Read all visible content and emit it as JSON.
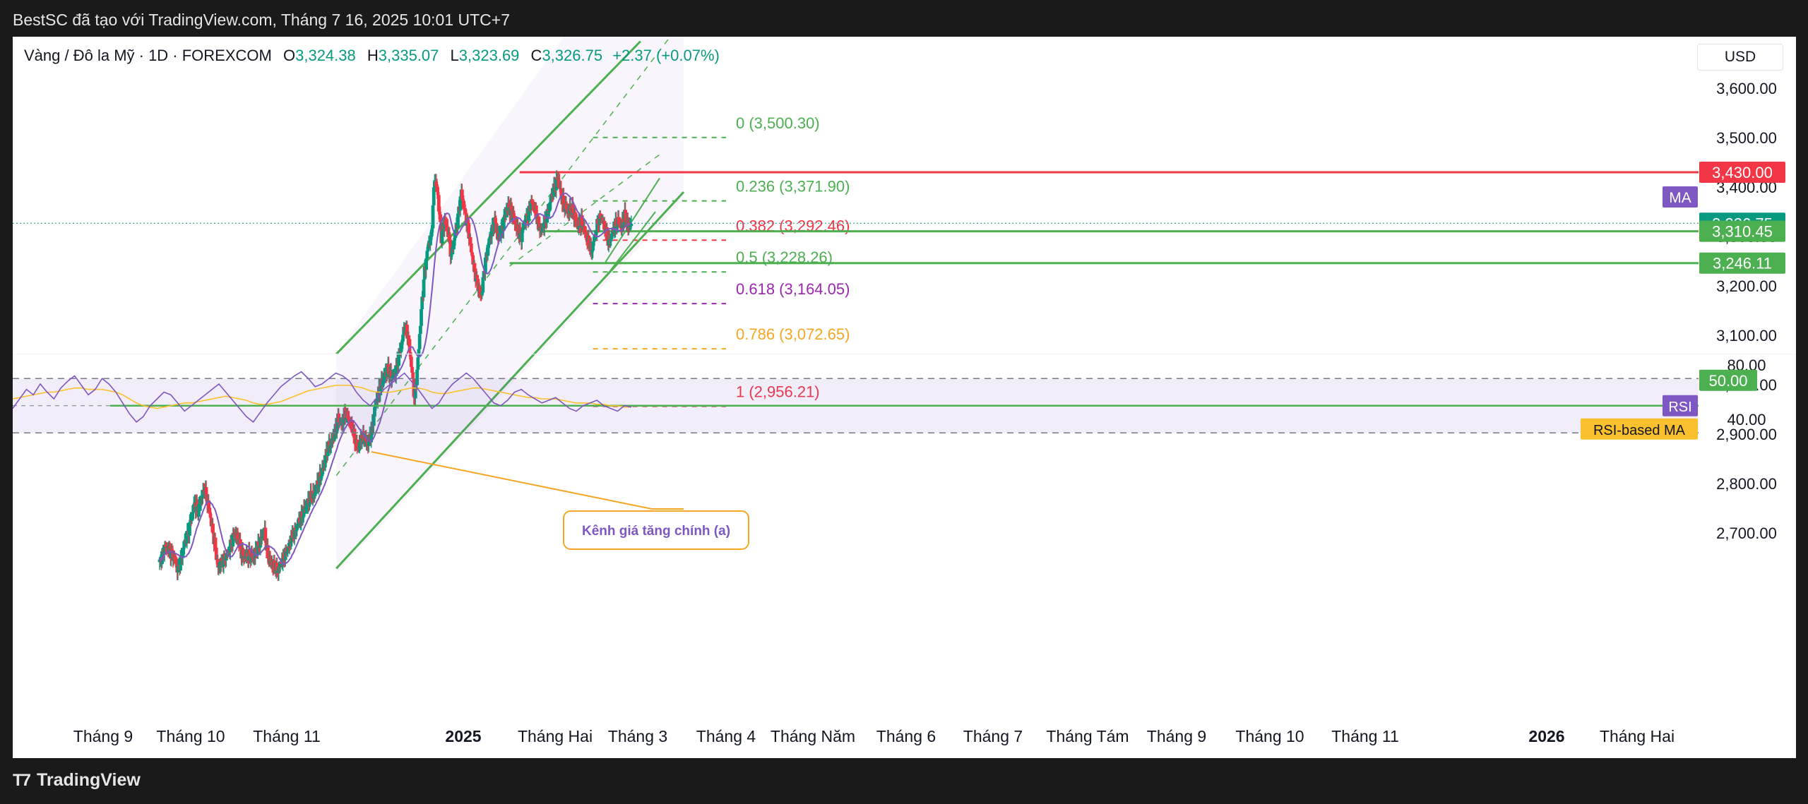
{
  "header": {
    "attribution": "BestSC đã tạo với TradingView.com, Tháng 7 16, 2025 10:01 UTC+7"
  },
  "footer": {
    "brand": "TradingView",
    "brand_icon": "tradingview-logo-icon"
  },
  "legend": {
    "symbol": "Vàng / Đô la Mỹ · 1D · FOREXCOM",
    "open_label": "O",
    "open": "3,324.38",
    "high_label": "H",
    "high": "3,335.07",
    "low_label": "L",
    "low": "3,323.69",
    "close_label": "C",
    "close": "3,326.75",
    "change": "+2.37 (+0.07%)"
  },
  "currency": "USD",
  "colors": {
    "up": "#089981",
    "down": "#f23645",
    "channel": "#4caf50",
    "ma": "#7e57c2",
    "rsi": "#7e57c2",
    "rsi_ma": "#fbc02d",
    "resistance": "#f23645"
  },
  "chart_data": [
    {
      "type": "candlestick",
      "symbol": "Vàng / Đô la Mỹ · 1D · FOREXCOM",
      "y_ticks": [
        "3,600.00",
        "3,500.00",
        "3,400.00",
        "3,300.00",
        "3,200.00",
        "3,100.00",
        "3,000.00",
        "2,900.00",
        "2,800.00",
        "2,700.00"
      ],
      "y_tick_values": [
        3600,
        3500,
        3400,
        3300,
        3200,
        3100,
        3000,
        2900,
        2800,
        2700
      ],
      "ylim": [
        2610,
        3705
      ],
      "x_ticks": [
        {
          "label": "Tháng 9",
          "bold": false
        },
        {
          "label": "Tháng 10",
          "bold": false
        },
        {
          "label": "Tháng 11",
          "bold": false
        },
        {
          "label": "2025",
          "bold": true
        },
        {
          "label": "Tháng Hai",
          "bold": false
        },
        {
          "label": "Tháng 3",
          "bold": false
        },
        {
          "label": "Tháng 4",
          "bold": false
        },
        {
          "label": "Tháng Năm",
          "bold": false
        },
        {
          "label": "Tháng 6",
          "bold": false
        },
        {
          "label": "Tháng 7",
          "bold": false
        },
        {
          "label": "Tháng Tám",
          "bold": false
        },
        {
          "label": "Tháng 9",
          "bold": false
        },
        {
          "label": "Tháng 10",
          "bold": false
        },
        {
          "label": "Tháng 11",
          "bold": false
        },
        {
          "label": "2026",
          "bold": true
        },
        {
          "label": "Tháng Hai",
          "bold": false
        }
      ],
      "close_path": [
        [
          0,
          2640
        ],
        [
          6,
          2672
        ],
        [
          10,
          2668
        ],
        [
          14,
          2660
        ],
        [
          18,
          2645
        ],
        [
          22,
          2625
        ],
        [
          26,
          2650
        ],
        [
          30,
          2680
        ],
        [
          34,
          2700
        ],
        [
          38,
          2730
        ],
        [
          42,
          2760
        ],
        [
          46,
          2745
        ],
        [
          50,
          2770
        ],
        [
          54,
          2790
        ],
        [
          58,
          2760
        ],
        [
          62,
          2720
        ],
        [
          66,
          2680
        ],
        [
          70,
          2630
        ],
        [
          74,
          2640
        ],
        [
          78,
          2650
        ],
        [
          82,
          2660
        ],
        [
          86,
          2680
        ],
        [
          90,
          2700
        ],
        [
          94,
          2690
        ],
        [
          98,
          2660
        ],
        [
          102,
          2650
        ],
        [
          106,
          2655
        ],
        [
          110,
          2650
        ],
        [
          114,
          2655
        ],
        [
          118,
          2670
        ],
        [
          122,
          2690
        ],
        [
          126,
          2700
        ],
        [
          130,
          2650
        ],
        [
          134,
          2640
        ],
        [
          138,
          2630
        ],
        [
          142,
          2625
        ],
        [
          146,
          2640
        ],
        [
          150,
          2655
        ],
        [
          154,
          2670
        ],
        [
          158,
          2690
        ],
        [
          162,
          2700
        ],
        [
          166,
          2720
        ],
        [
          170,
          2730
        ],
        [
          174,
          2750
        ],
        [
          178,
          2760
        ],
        [
          182,
          2775
        ],
        [
          186,
          2780
        ],
        [
          190,
          2800
        ],
        [
          194,
          2820
        ],
        [
          198,
          2845
        ],
        [
          202,
          2870
        ],
        [
          206,
          2885
        ],
        [
          210,
          2900
        ],
        [
          214,
          2930
        ],
        [
          218,
          2920
        ],
        [
          222,
          2940
        ],
        [
          226,
          2935
        ],
        [
          230,
          2920
        ],
        [
          234,
          2890
        ],
        [
          238,
          2870
        ],
        [
          242,
          2895
        ],
        [
          246,
          2890
        ],
        [
          250,
          2880
        ],
        [
          254,
          2900
        ],
        [
          258,
          2950
        ],
        [
          262,
          2980
        ],
        [
          266,
          3000
        ],
        [
          270,
          3020
        ],
        [
          274,
          3030
        ],
        [
          278,
          3015
        ],
        [
          282,
          3020
        ],
        [
          286,
          3050
        ],
        [
          290,
          3080
        ],
        [
          294,
          3120
        ],
        [
          298,
          3100
        ],
        [
          302,
          3040
        ],
        [
          306,
          2970
        ],
        [
          310,
          3050
        ],
        [
          314,
          3150
        ],
        [
          318,
          3230
        ],
        [
          322,
          3280
        ],
        [
          326,
          3300
        ],
        [
          330,
          3420
        ],
        [
          334,
          3380
        ],
        [
          338,
          3300
        ],
        [
          342,
          3330
        ],
        [
          346,
          3310
        ],
        [
          350,
          3260
        ],
        [
          354,
          3300
        ],
        [
          358,
          3340
        ],
        [
          362,
          3390
        ],
        [
          366,
          3350
        ],
        [
          370,
          3320
        ],
        [
          374,
          3270
        ],
        [
          378,
          3230
        ],
        [
          382,
          3200
        ],
        [
          386,
          3180
        ],
        [
          390,
          3240
        ],
        [
          394,
          3280
        ],
        [
          398,
          3310
        ],
        [
          402,
          3330
        ],
        [
          406,
          3300
        ],
        [
          410,
          3310
        ],
        [
          414,
          3340
        ],
        [
          418,
          3360
        ],
        [
          422,
          3350
        ],
        [
          426,
          3330
        ],
        [
          430,
          3310
        ],
        [
          434,
          3300
        ],
        [
          438,
          3330
        ],
        [
          442,
          3345
        ],
        [
          446,
          3370
        ],
        [
          450,
          3360
        ],
        [
          454,
          3330
        ],
        [
          458,
          3310
        ],
        [
          462,
          3330
        ],
        [
          466,
          3350
        ],
        [
          470,
          3380
        ],
        [
          474,
          3400
        ],
        [
          478,
          3420
        ],
        [
          482,
          3380
        ],
        [
          486,
          3360
        ],
        [
          490,
          3350
        ],
        [
          494,
          3355
        ],
        [
          498,
          3340
        ],
        [
          502,
          3320
        ],
        [
          506,
          3330
        ],
        [
          510,
          3310
        ],
        [
          514,
          3290
        ],
        [
          518,
          3270
        ],
        [
          522,
          3300
        ],
        [
          526,
          3330
        ],
        [
          530,
          3340
        ],
        [
          534,
          3320
        ],
        [
          538,
          3290
        ],
        [
          542,
          3300
        ],
        [
          546,
          3320
        ],
        [
          550,
          3330
        ],
        [
          554,
          3320
        ],
        [
          558,
          3340
        ],
        [
          562,
          3320
        ],
        [
          566,
          3326
        ]
      ],
      "ma_label": "MA",
      "price_labels": [
        {
          "text": "3,430.00",
          "value": 3430,
          "bg": "#f23645"
        },
        {
          "text": "3,326.75",
          "value": 3326.75,
          "bg": "#089981"
        },
        {
          "text": "3,310.45",
          "value": 3310.45,
          "bg": "#4caf50"
        },
        {
          "text": "3,246.11",
          "value": 3246.11,
          "bg": "#4caf50"
        }
      ],
      "fibonacci": [
        {
          "label": "0 (3,500.30)",
          "value": 3500.3,
          "color": "#4caf50"
        },
        {
          "label": "0.236 (3,371.90)",
          "value": 3371.9,
          "color": "#4caf50"
        },
        {
          "label": "0.382 (3,292.46)",
          "value": 3292.46,
          "color": "#f23645"
        },
        {
          "label": "0.5 (3,228.26)",
          "value": 3228.26,
          "color": "#4caf50"
        },
        {
          "label": "0.618 (3,164.05)",
          "value": 3164.05,
          "color": "#9c27b0"
        },
        {
          "label": "0.786 (3,072.65)",
          "value": 3072.65,
          "color": "#f5a623"
        },
        {
          "label": "1 (2,956.21)",
          "value": 2956.21,
          "color": "#f23645"
        }
      ],
      "annotation": "Kênh giá tăng chính (a)"
    },
    {
      "type": "line",
      "name": "RSI",
      "y_ticks": [
        "80.00",
        "40.00"
      ],
      "y_tick_values": [
        80,
        40
      ],
      "bands": [
        70,
        50,
        30
      ],
      "level_label": "50.00",
      "legend": [
        "RSI",
        "RSI-based MA"
      ],
      "series": [
        {
          "name": "RSI",
          "values": [
            48,
            55,
            62,
            58,
            66,
            60,
            55,
            63,
            68,
            72,
            65,
            58,
            62,
            70,
            66,
            60,
            52,
            44,
            38,
            42,
            50,
            55,
            60,
            58,
            52,
            46,
            50,
            54,
            58,
            62,
            66,
            60,
            54,
            48,
            42,
            38,
            45,
            52,
            58,
            64,
            68,
            72,
            75,
            70,
            64,
            66,
            70,
            74,
            72,
            68,
            60,
            54,
            50,
            56,
            62,
            66,
            70,
            74,
            68,
            62,
            55,
            48,
            52,
            60,
            66,
            70,
            74,
            70,
            64,
            58,
            52,
            50,
            54,
            60,
            62,
            58,
            55,
            52,
            54,
            56,
            52,
            48,
            46,
            50,
            52,
            54,
            50,
            48,
            46,
            50,
            49
          ]
        },
        {
          "name": "RSI-based MA",
          "values": [
            55,
            56,
            57,
            58,
            59,
            60,
            60,
            61,
            62,
            63,
            63,
            62,
            62,
            62,
            61,
            60,
            58,
            55,
            52,
            50,
            49,
            48,
            49,
            50,
            51,
            52,
            52,
            53,
            54,
            55,
            56,
            57,
            56,
            55,
            54,
            52,
            51,
            51,
            52,
            53,
            55,
            57,
            59,
            61,
            62,
            63,
            64,
            65,
            65,
            65,
            64,
            63,
            61,
            60,
            60,
            60,
            61,
            62,
            63,
            63,
            62,
            60,
            59,
            59,
            60,
            61,
            62,
            63,
            63,
            62,
            61,
            60,
            59,
            58,
            57,
            56,
            56,
            55,
            55,
            55,
            54,
            53,
            52,
            52,
            52,
            51,
            51,
            50,
            50,
            49,
            49
          ]
        }
      ]
    }
  ]
}
